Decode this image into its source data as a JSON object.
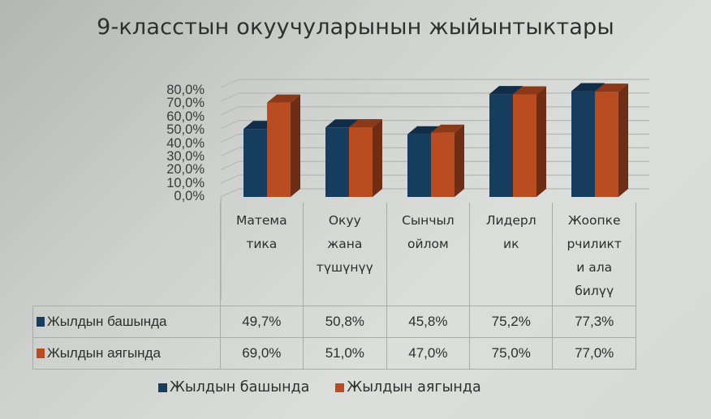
{
  "chart_data": {
    "type": "bar",
    "title": "9-класстын окуучуларынын жыйынтыктары",
    "categories": [
      "Математика",
      "Окуу жана түшүнүү",
      "Сынчыл ойлом",
      "Лидерлик",
      "Жоопкерчиликти ала билүү"
    ],
    "category_labels_wrapped": [
      [
        "Матема",
        "тика"
      ],
      [
        "Окуу",
        "жана",
        "түшүнүү"
      ],
      [
        "Сынчыл",
        "ойлом"
      ],
      [
        "Лидерл",
        "ик"
      ],
      [
        "Жоопке",
        "рчиликт",
        "и ала",
        "билүү"
      ]
    ],
    "series": [
      {
        "name": "Жылдын башында",
        "color": "#163c5e",
        "values": [
          49.7,
          50.8,
          45.8,
          75.2,
          77.3
        ],
        "labels": [
          "49,7%",
          "50,8%",
          "45,8%",
          "75,2%",
          "77,3%"
        ]
      },
      {
        "name": "Жылдын аягында",
        "color": "#b94c20",
        "values": [
          69.0,
          51.0,
          47.0,
          75.0,
          77.0
        ],
        "labels": [
          "69,0%",
          "51,0%",
          "47,0%",
          "75,0%",
          "77,0%"
        ]
      }
    ],
    "yticks": [
      "80,0%",
      "70,0%",
      "60,0%",
      "50,0%",
      "40,0%",
      "30,0%",
      "20,0%",
      "10,0%",
      "0,0%"
    ],
    "ylim": [
      0,
      80
    ],
    "xlabel": "",
    "ylabel": "",
    "grid": true,
    "style": "3d-clustered-column with data table",
    "legend_position": "bottom"
  },
  "title": "9-класстын окуучуларынын жыйынтыктары",
  "legend": [
    {
      "label": "Жылдын башында",
      "color": "#163c5e"
    },
    {
      "label": "Жылдын аягында",
      "color": "#b94c20"
    }
  ]
}
